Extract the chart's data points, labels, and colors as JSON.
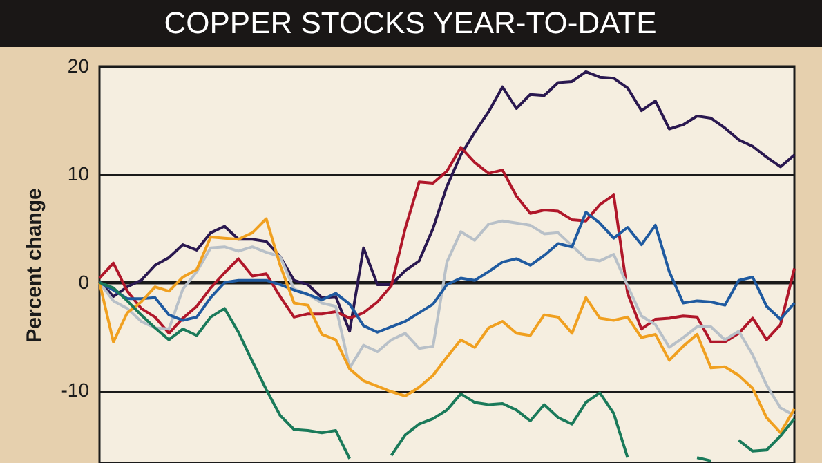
{
  "chart_data": {
    "type": "line",
    "title": "COPPER STOCKS YEAR-TO-DATE",
    "ylabel": "Percent change",
    "categories": [
      null,
      null,
      null,
      null,
      null,
      null,
      null,
      null,
      null,
      null,
      null,
      null,
      null,
      null,
      null,
      null,
      null,
      null,
      null,
      null,
      null,
      null,
      null,
      null,
      null,
      null,
      null,
      null,
      null,
      null,
      null,
      null,
      null,
      null,
      null,
      null,
      null,
      null,
      null,
      null,
      null,
      null,
      null,
      null,
      null,
      null,
      null,
      null,
      null,
      null,
      null
    ],
    "ylim": [
      -16.7,
      20
    ],
    "yticks": [
      -10,
      0,
      10,
      20
    ],
    "grid": "y",
    "line_style": "solid",
    "series": [
      {
        "color": "#2a1850",
        "values": [
          0.1,
          -1.3,
          -0.4,
          0.2,
          1.6,
          2.3,
          3.5,
          3,
          4.6,
          5.2,
          4,
          4,
          3.8,
          2.4,
          0.2,
          -0.2,
          -1.4,
          -1.3,
          -4.5,
          3.2,
          -0.2,
          -0.2,
          1.1,
          2,
          5,
          8.9,
          11.8,
          13.9,
          15.8,
          18.1,
          16.1,
          17.4,
          17.3,
          18.5,
          18.6,
          19.5,
          19,
          18.9,
          18,
          15.9,
          16.8,
          14.2,
          14.6,
          15.4,
          15.2,
          14.3,
          13.2,
          12.6,
          11.6,
          10.7,
          11.8
        ]
      },
      {
        "color": "#b0172a",
        "values": [
          0.4,
          1.8,
          -0.8,
          -2.4,
          -3.2,
          -4.7,
          -3.3,
          -2.2,
          -0.5,
          0.9,
          2.2,
          0.6,
          0.8,
          -1.3,
          -3.2,
          -2.9,
          -2.9,
          -2.7,
          -3.3,
          -2.8,
          -1.8,
          -0.3,
          5,
          9.3,
          9.2,
          10.3,
          12.5,
          11.1,
          10.1,
          10.4,
          8,
          6.4,
          6.7,
          6.6,
          5.8,
          5.7,
          7.2,
          8.1,
          -1,
          -4.3,
          -3.4,
          -3.3,
          -3.1,
          -3.2,
          -5.5,
          -5.5,
          -4.7,
          -3.3,
          -5.3,
          -3.9,
          1.3
        ]
      },
      {
        "color": "#b8c0c8",
        "values": [
          0,
          -1.7,
          -2.4,
          -3.6,
          -4.2,
          -4.3,
          -0.6,
          1,
          3.2,
          3.3,
          2.9,
          3.3,
          2.8,
          2.4,
          -0.6,
          -1.1,
          -1.9,
          -2.2,
          -7.9,
          -5.8,
          -6.4,
          -5.3,
          -4.7,
          -6.1,
          -5.9,
          1.9,
          4.7,
          3.9,
          5.4,
          5.7,
          5.5,
          5.3,
          4.5,
          4.6,
          3.4,
          2.2,
          2,
          2.6,
          -0.3,
          -3.1,
          -3.9,
          -6,
          -5.1,
          -4.1,
          -4.1,
          -5.3,
          -4.5,
          -6.7,
          -9.5,
          -11.6,
          -12.3
        ]
      },
      {
        "color": "#1f5aa0",
        "values": [
          0,
          -0.7,
          -1.5,
          -1.5,
          -1.4,
          -3,
          -3.5,
          -3.2,
          -1.4,
          0,
          0.2,
          0.2,
          0.2,
          -0.2,
          -0.7,
          -1.1,
          -1.6,
          -1,
          -2,
          -4,
          -4.6,
          -4.1,
          -3.6,
          -2.8,
          -2,
          -0.2,
          0.4,
          0.2,
          1,
          1.9,
          2.2,
          1.6,
          2.5,
          3.6,
          3.3,
          6.5,
          5.5,
          4.1,
          5.1,
          3.5,
          5.3,
          1,
          -1.9,
          -1.7,
          -1.8,
          -2.1,
          0.2,
          0.5,
          -2.2,
          -3.4,
          -1.9
        ]
      },
      {
        "color": "#f0a020",
        "values": [
          0,
          -5.5,
          -2.8,
          -1.8,
          -0.4,
          -0.8,
          0.5,
          1.2,
          4.2,
          4.1,
          4,
          4.6,
          5.9,
          1.6,
          -1.9,
          -2.1,
          -4.8,
          -5.3,
          -8,
          -9.1,
          -9.6,
          -10.1,
          -10.5,
          -9.7,
          -8.6,
          -6.9,
          -5.3,
          -6,
          -4.2,
          -3.6,
          -4.7,
          -4.9,
          -3,
          -3.2,
          -4.7,
          -1.4,
          -3.3,
          -3.5,
          -3.2,
          -5.1,
          -4.8,
          -7.2,
          -5.9,
          -4.8,
          -7.9,
          -7.8,
          -8.6,
          -9.8,
          -12.5,
          -13.9,
          -11.7
        ]
      },
      {
        "color": "#1a7a5a",
        "values": [
          0,
          -0.5,
          -1.7,
          -3,
          -4.2,
          -5.3,
          -4.3,
          -4.9,
          -3.2,
          -2.4,
          -4.6,
          -7.3,
          -9.9,
          -12.3,
          -13.6,
          -13.7,
          -13.9,
          -13.7,
          -16.3,
          null,
          null,
          -16,
          -14.1,
          -13.1,
          -12.6,
          -11.8,
          -10.3,
          -11.1,
          -11.3,
          -11.2,
          -11.8,
          -12.8,
          -11.3,
          -12.5,
          -13.1,
          -11.1,
          -10.2,
          -12.1,
          -16.2,
          null,
          null,
          null,
          null,
          -16.2,
          -16.5,
          null,
          -14.6,
          -15.6,
          -15.5,
          -14.2,
          -12.6
        ]
      }
    ]
  }
}
